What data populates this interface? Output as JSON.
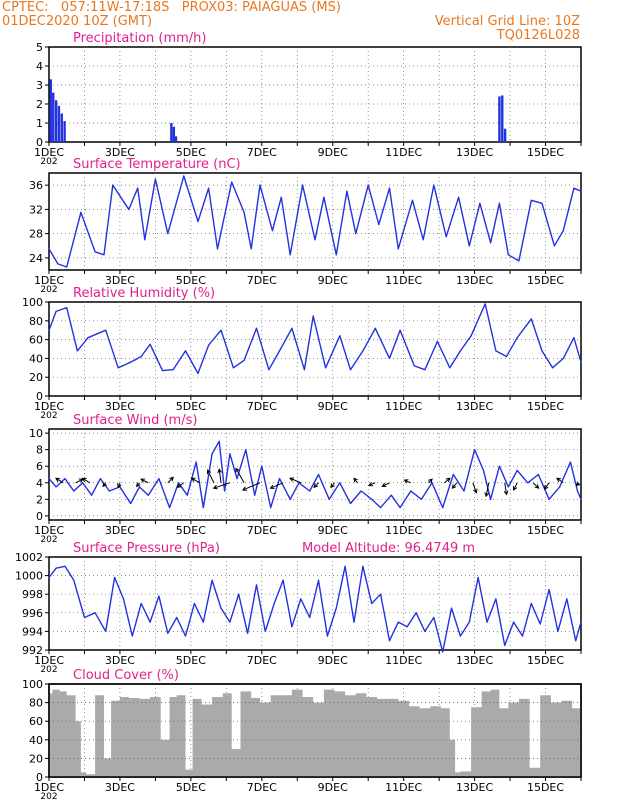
{
  "header": {
    "line1": "CPTEC:   057:11W-17:18S   PROX03: PAIAGUAS (MS)",
    "line2_left": "01DEC2020 10Z (GMT)",
    "line2_right": "Vertical Grid Line: 10Z",
    "line3_right": "TQ0126L028"
  },
  "colors": {
    "header": "#e87820",
    "title": "#e0208c",
    "series": "#2233dd",
    "cloud": "#aaaaaa",
    "arrow": "#000000"
  },
  "x_axis": {
    "tick_labels": [
      "1DEC",
      "3DEC",
      "5DEC",
      "7DEC",
      "9DEC",
      "11DEC",
      "13DEC",
      "15DEC"
    ],
    "year_stub": "202"
  },
  "chart_data": [
    {
      "id": "precip",
      "type": "bar",
      "title": "Precipitation (mm/h)",
      "ylim": [
        0,
        5
      ],
      "yticks": [
        0,
        1,
        2,
        3,
        4,
        5
      ],
      "x_days": [
        1.05,
        1.12,
        1.2,
        1.28,
        1.36,
        1.44,
        4.45,
        4.52,
        4.58,
        13.7,
        13.78,
        13.86
      ],
      "values": [
        3.3,
        2.6,
        2.2,
        1.9,
        1.5,
        1.1,
        1.0,
        0.8,
        0.3,
        2.4,
        2.45,
        0.7
      ]
    },
    {
      "id": "temp",
      "type": "line",
      "title": "Surface Temperature (nC)",
      "ylim": [
        22,
        38
      ],
      "yticks": [
        24,
        28,
        32,
        36
      ],
      "x": [
        1.0,
        1.25,
        1.5,
        1.9,
        2.3,
        2.55,
        2.8,
        3.25,
        3.5,
        3.7,
        4.0,
        4.35,
        4.8,
        5.2,
        5.5,
        5.75,
        6.15,
        6.5,
        6.7,
        6.95,
        7.3,
        7.55,
        7.8,
        8.15,
        8.5,
        8.75,
        9.1,
        9.4,
        9.65,
        10.0,
        10.3,
        10.6,
        10.85,
        11.25,
        11.55,
        11.85,
        12.2,
        12.55,
        12.85,
        13.15,
        13.45,
        13.7,
        13.95,
        14.25,
        14.6,
        14.9,
        15.25,
        15.5,
        15.8,
        16.0
      ],
      "values": [
        25.5,
        23.0,
        22.5,
        31.5,
        25.0,
        24.5,
        36.0,
        32.0,
        35.5,
        27.0,
        37.0,
        28.0,
        37.5,
        30.0,
        35.5,
        25.5,
        36.5,
        31.5,
        25.5,
        36.0,
        28.5,
        34.0,
        24.5,
        36.0,
        27.0,
        34.0,
        24.5,
        35.0,
        28.0,
        36.0,
        29.5,
        35.5,
        25.5,
        33.5,
        27.0,
        36.0,
        27.5,
        34.0,
        26.0,
        33.0,
        26.5,
        33.0,
        24.5,
        23.5,
        33.5,
        33.0,
        26.0,
        28.5,
        35.5,
        35.0
      ]
    },
    {
      "id": "rh",
      "type": "line",
      "title": "Relative Humidity (%)",
      "ylim": [
        0,
        100
      ],
      "yticks": [
        0,
        20,
        40,
        60,
        80,
        100
      ],
      "x": [
        1.0,
        1.2,
        1.5,
        1.8,
        2.1,
        2.6,
        2.95,
        3.3,
        3.6,
        3.85,
        4.2,
        4.5,
        4.85,
        5.2,
        5.5,
        5.85,
        6.2,
        6.5,
        6.85,
        7.2,
        7.5,
        7.85,
        8.2,
        8.45,
        8.8,
        9.2,
        9.5,
        9.85,
        10.2,
        10.6,
        10.9,
        11.3,
        11.6,
        11.95,
        12.3,
        12.6,
        12.9,
        13.3,
        13.6,
        13.9,
        14.2,
        14.6,
        14.9,
        15.2,
        15.5,
        15.8,
        16.0
      ],
      "values": [
        70,
        90,
        94,
        48,
        62,
        70,
        30,
        36,
        42,
        55,
        27,
        28,
        48,
        24,
        54,
        70,
        30,
        38,
        72,
        28,
        48,
        72,
        28,
        85,
        30,
        64,
        28,
        48,
        72,
        40,
        70,
        32,
        28,
        58,
        30,
        48,
        64,
        98,
        48,
        42,
        62,
        82,
        48,
        30,
        40,
        62,
        36
      ]
    },
    {
      "id": "wind",
      "type": "line",
      "title": "Surface Wind (m/s)",
      "ylim": [
        -0.5,
        10.5
      ],
      "yticks": [
        0,
        2,
        4,
        6,
        8,
        10
      ],
      "x": [
        1.0,
        1.2,
        1.45,
        1.7,
        1.95,
        2.2,
        2.45,
        2.7,
        3.0,
        3.3,
        3.55,
        3.8,
        4.1,
        4.4,
        4.65,
        4.9,
        5.15,
        5.35,
        5.6,
        5.8,
        5.95,
        6.1,
        6.3,
        6.55,
        6.8,
        7.0,
        7.25,
        7.5,
        7.8,
        8.05,
        8.35,
        8.6,
        8.9,
        9.2,
        9.5,
        9.8,
        10.1,
        10.35,
        10.65,
        10.9,
        11.2,
        11.5,
        11.8,
        12.1,
        12.4,
        12.7,
        13.0,
        13.25,
        13.45,
        13.7,
        13.95,
        14.2,
        14.5,
        14.8,
        15.1,
        15.4,
        15.7,
        15.9,
        16.0
      ],
      "values": [
        4.5,
        3.5,
        4.5,
        3.0,
        4.0,
        2.5,
        4.5,
        3.0,
        3.5,
        1.5,
        3.5,
        2.5,
        4.5,
        1.0,
        4.0,
        2.5,
        6.5,
        1.0,
        7.5,
        9.0,
        3.0,
        7.5,
        4.5,
        8.0,
        2.5,
        6.0,
        1.0,
        4.5,
        2.0,
        4.0,
        3.0,
        5.0,
        2.0,
        4.0,
        1.5,
        3.0,
        2.0,
        1.0,
        2.5,
        1.0,
        3.0,
        2.0,
        4.0,
        1.0,
        5.0,
        3.0,
        8.0,
        5.5,
        2.0,
        6.0,
        3.5,
        5.5,
        4.0,
        5.0,
        2.0,
        3.5,
        6.5,
        3.0,
        2.0
      ],
      "vectors": [
        {
          "day": 1.4,
          "dx": -0.8,
          "dy": 0.5
        },
        {
          "day": 1.75,
          "dx": 0.8,
          "dy": 0.4
        },
        {
          "day": 2.15,
          "dx": -0.8,
          "dy": 0.5
        },
        {
          "day": 2.6,
          "dx": -0.3,
          "dy": -0.4
        },
        {
          "day": 3.0,
          "dx": -0.2,
          "dy": -0.5
        },
        {
          "day": 3.55,
          "dx": -0.3,
          "dy": -0.4
        },
        {
          "day": 3.8,
          "dx": -0.8,
          "dy": 0.4
        },
        {
          "day": 4.35,
          "dx": 0.6,
          "dy": 0.6
        },
        {
          "day": 4.8,
          "dx": -0.7,
          "dy": -0.5
        },
        {
          "day": 5.25,
          "dx": -0.9,
          "dy": 0.5
        },
        {
          "day": 5.65,
          "dx": -0.7,
          "dy": 1.4
        },
        {
          "day": 5.85,
          "dx": -0.2,
          "dy": 1.5
        },
        {
          "day": 6.1,
          "dx": -1.8,
          "dy": -0.6
        },
        {
          "day": 6.5,
          "dx": -0.9,
          "dy": 1.6
        },
        {
          "day": 6.95,
          "dx": -1.9,
          "dy": -0.8
        },
        {
          "day": 7.6,
          "dx": -1.4,
          "dy": -0.6
        },
        {
          "day": 8.1,
          "dx": -1.2,
          "dy": 0.5
        },
        {
          "day": 8.6,
          "dx": -0.5,
          "dy": -0.5
        },
        {
          "day": 9.05,
          "dx": -0.4,
          "dy": -0.5
        },
        {
          "day": 9.7,
          "dx": -0.4,
          "dy": 0.5
        },
        {
          "day": 10.2,
          "dx": -0.7,
          "dy": -0.3
        },
        {
          "day": 10.6,
          "dx": -0.8,
          "dy": -0.4
        },
        {
          "day": 11.2,
          "dx": -0.7,
          "dy": 0.3
        },
        {
          "day": 11.7,
          "dx": 0.4,
          "dy": 0.4
        },
        {
          "day": 12.15,
          "dx": 0.6,
          "dy": 0.5
        },
        {
          "day": 12.5,
          "dx": -0.5,
          "dy": -0.6
        },
        {
          "day": 12.95,
          "dx": 0.4,
          "dy": -1.1
        },
        {
          "day": 13.4,
          "dx": -0.3,
          "dy": -1.5
        },
        {
          "day": 13.85,
          "dx": 0.2,
          "dy": -1.3
        },
        {
          "day": 14.2,
          "dx": -0.4,
          "dy": -0.8
        },
        {
          "day": 14.65,
          "dx": 0.6,
          "dy": -0.6
        },
        {
          "day": 15.1,
          "dx": -0.5,
          "dy": -0.7
        },
        {
          "day": 15.5,
          "dx": -0.7,
          "dy": 0.5
        },
        {
          "day": 15.95,
          "dx": -0.3,
          "dy": -0.3
        }
      ]
    },
    {
      "id": "pressure",
      "type": "line",
      "title": "Surface Pressure (hPa)",
      "annotation": "Model Altitude: 96.4749 m",
      "ylim": [
        992,
        1002
      ],
      "yticks": [
        992,
        994,
        996,
        998,
        1000,
        1002
      ],
      "x": [
        1.0,
        1.2,
        1.45,
        1.7,
        2.0,
        2.3,
        2.6,
        2.85,
        3.1,
        3.35,
        3.6,
        3.85,
        4.1,
        4.35,
        4.6,
        4.85,
        5.1,
        5.35,
        5.6,
        5.85,
        6.1,
        6.35,
        6.6,
        6.85,
        7.1,
        7.35,
        7.6,
        7.85,
        8.1,
        8.35,
        8.6,
        8.85,
        9.1,
        9.35,
        9.6,
        9.85,
        10.1,
        10.35,
        10.6,
        10.85,
        11.1,
        11.35,
        11.6,
        11.85,
        12.1,
        12.35,
        12.6,
        12.85,
        13.1,
        13.35,
        13.6,
        13.85,
        14.1,
        14.35,
        14.6,
        14.85,
        15.1,
        15.35,
        15.6,
        15.85,
        16.0
      ],
      "values": [
        999.8,
        1000.8,
        1001.0,
        999.5,
        995.5,
        996.0,
        994.0,
        999.8,
        997.5,
        993.5,
        997.0,
        995.0,
        997.8,
        993.8,
        995.5,
        993.5,
        997.0,
        995.0,
        999.5,
        996.5,
        995.0,
        998.0,
        993.8,
        999.0,
        994.0,
        997.0,
        999.5,
        994.5,
        997.5,
        995.5,
        999.5,
        993.5,
        996.5,
        1001.0,
        995.0,
        1001.0,
        997.0,
        998.0,
        993.0,
        995.0,
        994.5,
        996.0,
        994.0,
        995.5,
        991.8,
        996.5,
        993.5,
        995.0,
        999.8,
        995.0,
        997.5,
        992.5,
        995.0,
        993.5,
        997.0,
        994.8,
        998.5,
        994.0,
        997.5,
        993.0,
        995.0
      ]
    },
    {
      "id": "cloud",
      "type": "area",
      "title": "Cloud Cover (%)",
      "ylim": [
        0,
        100
      ],
      "yticks": [
        0,
        20,
        40,
        60,
        80,
        100
      ],
      "x": [
        1.0,
        1.1,
        1.3,
        1.5,
        1.75,
        1.9,
        2.05,
        2.3,
        2.55,
        2.75,
        3.0,
        3.25,
        3.55,
        3.85,
        4.15,
        4.4,
        4.6,
        4.85,
        5.05,
        5.3,
        5.6,
        5.9,
        6.15,
        6.4,
        6.7,
        6.95,
        7.25,
        7.55,
        7.85,
        8.15,
        8.45,
        8.75,
        9.05,
        9.35,
        9.65,
        9.95,
        10.25,
        10.55,
        10.85,
        11.15,
        11.45,
        11.75,
        12.05,
        12.3,
        12.45,
        12.6,
        12.9,
        13.2,
        13.45,
        13.7,
        13.95,
        14.25,
        14.55,
        14.85,
        15.15,
        15.45,
        15.75,
        16.0
      ],
      "values": [
        90,
        94,
        92,
        88,
        60,
        5,
        3,
        88,
        20,
        82,
        86,
        85,
        84,
        86,
        40,
        86,
        88,
        8,
        84,
        78,
        86,
        90,
        30,
        92,
        85,
        80,
        88,
        88,
        94,
        86,
        80,
        94,
        92,
        88,
        90,
        86,
        84,
        84,
        82,
        76,
        74,
        76,
        74,
        40,
        5,
        6,
        75,
        92,
        94,
        74,
        80,
        84,
        10,
        88,
        80,
        82,
        74,
        72
      ]
    }
  ]
}
